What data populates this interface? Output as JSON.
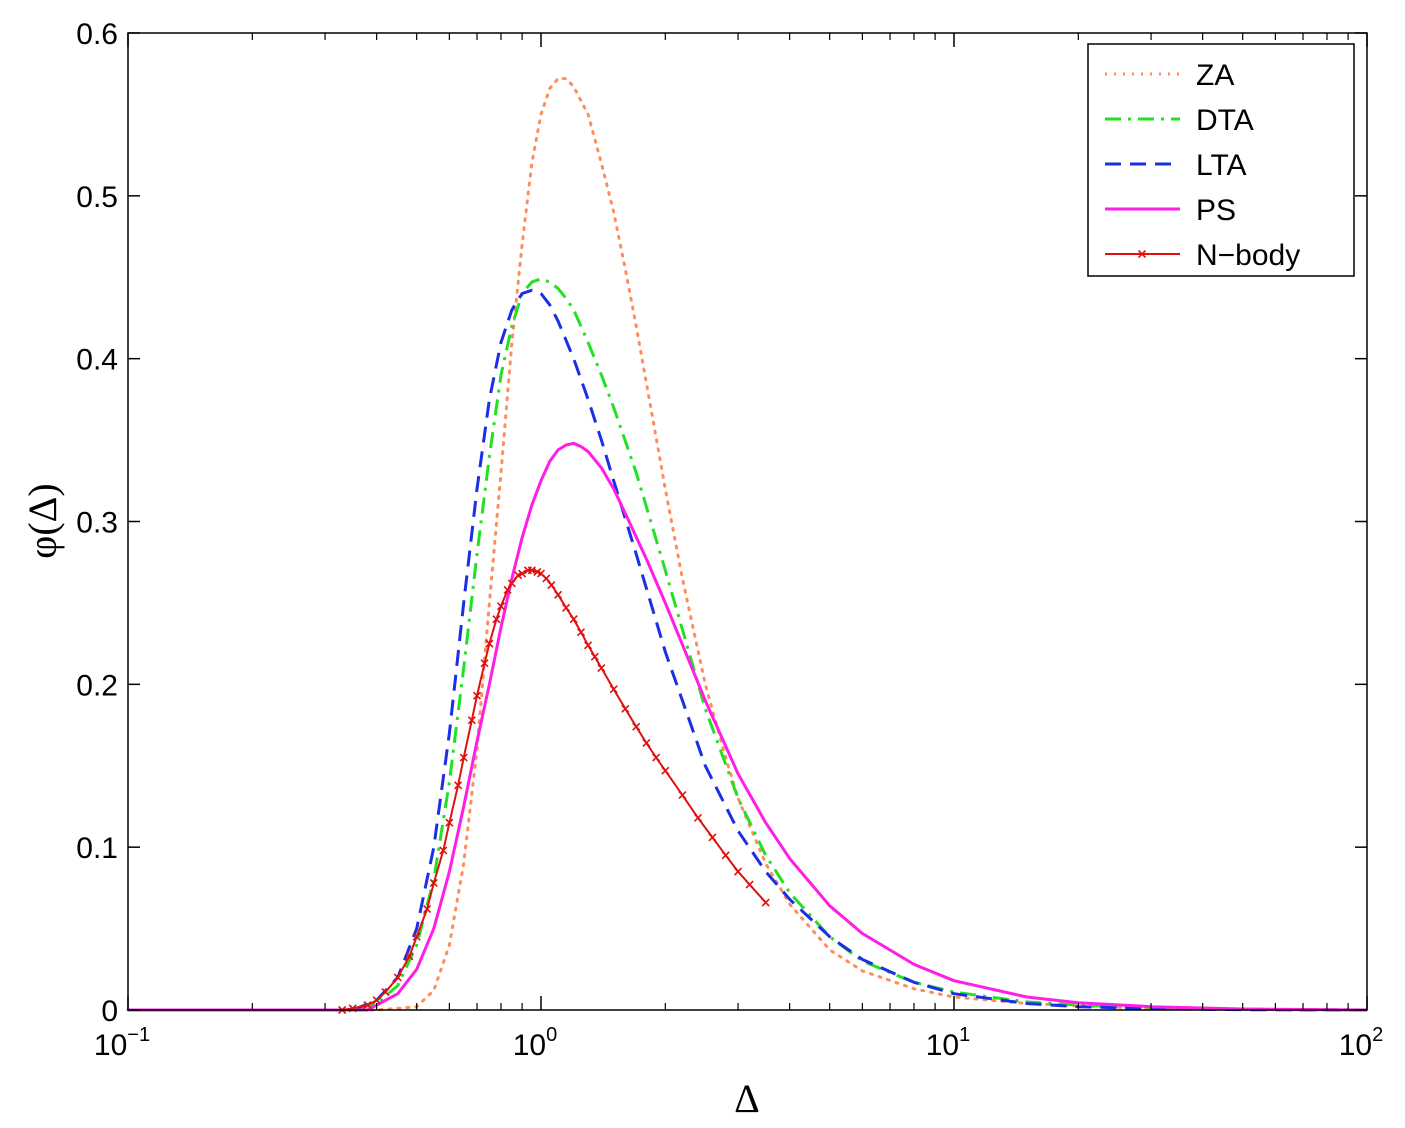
{
  "chart_data": {
    "type": "line",
    "title": "",
    "xlabel": "Δ",
    "ylabel": "φ(Δ)",
    "xscale": "log",
    "xlim": [
      0.1,
      100
    ],
    "ylim": [
      0,
      0.6
    ],
    "grid": false,
    "legend_position": "top-right",
    "x_ticks": [
      {
        "base": "10",
        "exp": "−1",
        "value": 0.1
      },
      {
        "base": "10",
        "exp": "0",
        "value": 1
      },
      {
        "base": "10",
        "exp": "1",
        "value": 10
      },
      {
        "base": "10",
        "exp": "2",
        "value": 100
      }
    ],
    "y_ticks": [
      "0",
      "0.1",
      "0.2",
      "0.3",
      "0.4",
      "0.5",
      "0.6"
    ],
    "series": [
      {
        "name": "ZA",
        "color": "#ff8c5a",
        "dash": "dotted",
        "x": [
          0.1,
          0.4,
          0.5,
          0.55,
          0.6,
          0.65,
          0.7,
          0.75,
          0.8,
          0.85,
          0.9,
          0.95,
          1.0,
          1.05,
          1.1,
          1.15,
          1.2,
          1.3,
          1.4,
          1.5,
          1.6,
          1.7,
          1.8,
          2.0,
          2.2,
          2.5,
          2.8,
          3.0,
          3.5,
          4.0,
          5.0,
          6.0,
          8.0,
          10,
          15,
          20,
          30,
          50,
          100
        ],
        "y": [
          0,
          0,
          0.002,
          0.012,
          0.04,
          0.09,
          0.16,
          0.25,
          0.33,
          0.41,
          0.47,
          0.52,
          0.55,
          0.566,
          0.572,
          0.572,
          0.567,
          0.55,
          0.52,
          0.49,
          0.455,
          0.42,
          0.385,
          0.32,
          0.265,
          0.2,
          0.155,
          0.13,
          0.09,
          0.065,
          0.037,
          0.024,
          0.013,
          0.008,
          0.004,
          0.0025,
          0.001,
          0.0003,
          0
        ]
      },
      {
        "name": "DTA",
        "color": "#22e022",
        "dash": "dashdot",
        "x": [
          0.1,
          0.35,
          0.4,
          0.45,
          0.5,
          0.55,
          0.6,
          0.65,
          0.7,
          0.75,
          0.8,
          0.85,
          0.9,
          0.95,
          1.0,
          1.05,
          1.1,
          1.15,
          1.2,
          1.3,
          1.4,
          1.5,
          1.7,
          2.0,
          2.5,
          3.0,
          3.5,
          4.0,
          5.0,
          6.0,
          8.0,
          10,
          15,
          20,
          30,
          50,
          100
        ],
        "y": [
          0,
          0,
          0.004,
          0.015,
          0.04,
          0.08,
          0.14,
          0.21,
          0.28,
          0.34,
          0.39,
          0.42,
          0.44,
          0.447,
          0.449,
          0.447,
          0.443,
          0.437,
          0.43,
          0.41,
          0.39,
          0.37,
          0.33,
          0.27,
          0.185,
          0.13,
          0.095,
          0.072,
          0.045,
          0.03,
          0.017,
          0.011,
          0.005,
          0.003,
          0.0013,
          0.0004,
          0
        ]
      },
      {
        "name": "LTA",
        "color": "#1a2fe6",
        "dash": "dashed",
        "x": [
          0.1,
          0.35,
          0.4,
          0.45,
          0.5,
          0.55,
          0.6,
          0.65,
          0.7,
          0.75,
          0.8,
          0.85,
          0.9,
          0.95,
          1.0,
          1.05,
          1.1,
          1.2,
          1.3,
          1.4,
          1.5,
          1.7,
          2.0,
          2.5,
          3.0,
          3.5,
          4.0,
          5.0,
          6.0,
          8.0,
          10,
          15,
          20,
          30,
          50,
          100
        ],
        "y": [
          0,
          0,
          0.006,
          0.02,
          0.05,
          0.1,
          0.17,
          0.25,
          0.32,
          0.375,
          0.41,
          0.43,
          0.44,
          0.442,
          0.44,
          0.433,
          0.423,
          0.4,
          0.375,
          0.35,
          0.325,
          0.28,
          0.22,
          0.15,
          0.11,
          0.085,
          0.068,
          0.045,
          0.031,
          0.017,
          0.01,
          0.004,
          0.002,
          0.0008,
          0.0002,
          0
        ]
      },
      {
        "name": "PS",
        "color": "#ff1ee6",
        "dash": "solid",
        "x": [
          0.1,
          0.38,
          0.45,
          0.5,
          0.55,
          0.6,
          0.65,
          0.7,
          0.75,
          0.8,
          0.85,
          0.9,
          0.95,
          1.0,
          1.05,
          1.1,
          1.15,
          1.2,
          1.25,
          1.3,
          1.4,
          1.5,
          1.6,
          1.8,
          2.0,
          2.5,
          3.0,
          3.5,
          4.0,
          5.0,
          6.0,
          8.0,
          10,
          15,
          20,
          30,
          50,
          100
        ],
        "y": [
          0,
          0,
          0.01,
          0.025,
          0.05,
          0.085,
          0.125,
          0.165,
          0.2,
          0.235,
          0.265,
          0.29,
          0.31,
          0.325,
          0.337,
          0.344,
          0.347,
          0.348,
          0.346,
          0.343,
          0.333,
          0.32,
          0.305,
          0.277,
          0.25,
          0.19,
          0.145,
          0.115,
          0.093,
          0.064,
          0.047,
          0.028,
          0.018,
          0.008,
          0.0045,
          0.002,
          0.0006,
          0
        ]
      },
      {
        "name": "N−body",
        "color": "#e01010",
        "dash": "solid",
        "markers": "x",
        "x": [
          0.33,
          0.35,
          0.38,
          0.4,
          0.42,
          0.45,
          0.48,
          0.5,
          0.53,
          0.55,
          0.58,
          0.6,
          0.63,
          0.65,
          0.68,
          0.7,
          0.73,
          0.75,
          0.78,
          0.8,
          0.83,
          0.85,
          0.88,
          0.9,
          0.93,
          0.95,
          0.98,
          1.0,
          1.03,
          1.06,
          1.1,
          1.15,
          1.2,
          1.25,
          1.3,
          1.35,
          1.4,
          1.5,
          1.6,
          1.7,
          1.8,
          1.9,
          2.0,
          2.2,
          2.4,
          2.6,
          2.8,
          3.0,
          3.2,
          3.5
        ],
        "y": [
          0,
          0.001,
          0.003,
          0.006,
          0.011,
          0.02,
          0.033,
          0.045,
          0.062,
          0.078,
          0.098,
          0.115,
          0.138,
          0.155,
          0.178,
          0.193,
          0.213,
          0.225,
          0.24,
          0.248,
          0.258,
          0.262,
          0.267,
          0.268,
          0.27,
          0.27,
          0.269,
          0.268,
          0.265,
          0.261,
          0.255,
          0.247,
          0.24,
          0.232,
          0.224,
          0.217,
          0.21,
          0.197,
          0.185,
          0.174,
          0.164,
          0.155,
          0.147,
          0.132,
          0.118,
          0.106,
          0.095,
          0.085,
          0.077,
          0.066
        ]
      }
    ]
  }
}
